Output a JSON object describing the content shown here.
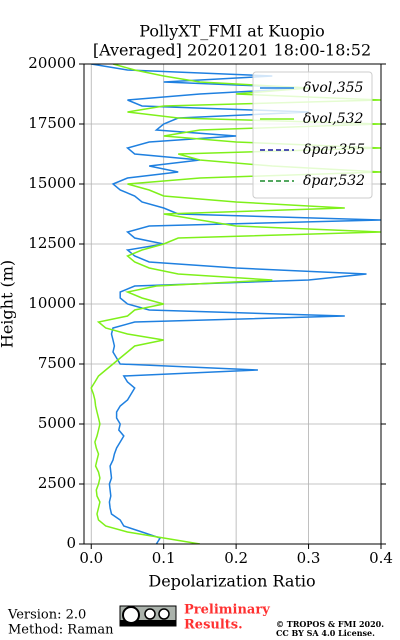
{
  "chart_data": {
    "type": "line",
    "title": "PollyXT_FMI at Kuopio",
    "subtitle": "[Averaged] 20201201 18:00-18:52",
    "xlabel": "Depolarization Ratio",
    "ylabel": "Height (m)",
    "xlim": [
      -0.01,
      0.4
    ],
    "ylim": [
      0,
      20000
    ],
    "xticks": [
      {
        "value": 0,
        "label": "0.0"
      },
      0.1,
      0.2,
      0.3,
      0.4
    ],
    "yticks": [
      0,
      2500,
      5000,
      7500,
      10000,
      12500,
      15000,
      17500,
      20000
    ],
    "grid": true,
    "legend": "upper right",
    "y": [
      0,
      250,
      500,
      750,
      1000,
      1250,
      1500,
      1750,
      2000,
      2250,
      2500,
      2750,
      3000,
      3250,
      3500,
      3750,
      4000,
      4250,
      4500,
      4750,
      5000,
      5250,
      5500,
      5750,
      6000,
      6250,
      6500,
      6750,
      7000,
      7250,
      7500,
      7750,
      8000,
      8250,
      8500,
      8750,
      9000,
      9250,
      9500,
      9750,
      10000,
      10250,
      10500,
      10750,
      11000,
      11250,
      11500,
      11750,
      12000,
      12250,
      12500,
      12750,
      13000,
      13250,
      13500,
      13750,
      14000,
      14250,
      14500,
      14750,
      15000,
      15250,
      15500,
      15750,
      16000,
      16250,
      16500,
      16750,
      17000,
      17250,
      17500,
      17750,
      18000,
      18250,
      18500,
      18750,
      19000,
      19250,
      19500,
      19750,
      20000
    ],
    "series": [
      {
        "name": "δvol,355",
        "color": "#1f80e0",
        "dash": false,
        "values": [
          0.09,
          0.095,
          0.07,
          0.045,
          0.04,
          0.028,
          0.026,
          0.025,
          0.027,
          0.026,
          0.025,
          0.028,
          0.027,
          0.026,
          0.03,
          0.032,
          0.035,
          0.04,
          0.045,
          0.038,
          0.04,
          0.035,
          0.035,
          0.04,
          0.05,
          0.055,
          0.06,
          0.05,
          0.045,
          0.23,
          0.04,
          0.035,
          0.03,
          0.032,
          0.03,
          0.028,
          0.03,
          0.06,
          0.35,
          0.08,
          0.05,
          0.04,
          0.04,
          0.06,
          0.3,
          0.38,
          0.2,
          0.08,
          0.06,
          0.05,
          0.1,
          0.06,
          0.05,
          0.08,
          0.4,
          0.12,
          0.1,
          0.07,
          0.06,
          0.04,
          0.03,
          0.05,
          0.12,
          0.08,
          0.15,
          0.06,
          0.05,
          0.08,
          0.2,
          0.09,
          0.1,
          0.12,
          0.3,
          0.07,
          0.05,
          0.15,
          0.3,
          0.1,
          0.25,
          0.05,
          0.0
        ]
      },
      {
        "name": "δvol,532",
        "color": "#7ff01a",
        "dash": false,
        "values": [
          0.15,
          0.1,
          0.05,
          0.02,
          0.01,
          0.008,
          0.01,
          0.012,
          0.008,
          0.007,
          0.01,
          0.012,
          0.01,
          0.006,
          0.008,
          0.01,
          0.007,
          0.005,
          0.008,
          0.01,
          0.012,
          0.01,
          0.008,
          0.006,
          0.005,
          0.003,
          0.0,
          0.005,
          0.01,
          0.02,
          0.03,
          0.04,
          0.05,
          0.06,
          0.1,
          0.05,
          0.02,
          0.01,
          0.05,
          0.06,
          0.1,
          0.07,
          0.05,
          0.09,
          0.25,
          0.12,
          0.08,
          0.06,
          0.05,
          0.07,
          0.1,
          0.12,
          0.4,
          0.2,
          0.15,
          0.1,
          0.35,
          0.2,
          0.1,
          0.08,
          0.05,
          0.15,
          0.4,
          0.25,
          0.15,
          0.12,
          0.4,
          0.2,
          0.1,
          0.15,
          0.4,
          0.12,
          0.05,
          0.1,
          0.4,
          0.2,
          0.3,
          0.15,
          0.1,
          0.06,
          0.03
        ]
      },
      {
        "name": "δpar,355",
        "color": "#1a1aa0",
        "dash": true,
        "values": [
          null,
          null,
          null,
          null,
          null,
          null,
          null,
          null,
          null,
          null,
          null,
          null,
          null,
          null,
          null,
          null,
          null,
          null,
          null,
          null,
          null,
          null,
          null,
          null,
          null,
          null,
          null,
          null,
          null,
          null,
          null,
          null,
          null,
          null,
          null,
          null,
          null,
          null,
          null,
          null,
          null,
          null,
          null,
          null,
          null,
          null,
          null,
          null,
          null,
          null,
          null,
          null,
          null,
          null,
          null,
          null,
          null,
          null,
          null,
          null,
          null,
          null,
          null,
          null,
          null,
          null,
          null,
          null,
          null,
          null,
          null,
          null,
          null,
          null,
          null,
          null,
          null,
          null,
          null,
          null,
          null
        ]
      },
      {
        "name": "δpar,532",
        "color": "#1a8a2a",
        "dash": true,
        "values": [
          null,
          null,
          null,
          null,
          null,
          null,
          null,
          null,
          null,
          null,
          null,
          null,
          null,
          null,
          null,
          null,
          null,
          null,
          null,
          null,
          null,
          null,
          null,
          null,
          null,
          null,
          null,
          null,
          null,
          null,
          null,
          null,
          null,
          null,
          null,
          null,
          null,
          null,
          null,
          null,
          null,
          null,
          null,
          null,
          null,
          null,
          null,
          null,
          null,
          null,
          null,
          null,
          null,
          null,
          null,
          null,
          null,
          null,
          null,
          null,
          null,
          null,
          null,
          null,
          null,
          null,
          null,
          null,
          null,
          null,
          null,
          null,
          null,
          null,
          null,
          null,
          null,
          null,
          null,
          null,
          null
        ]
      }
    ]
  },
  "footer": {
    "version": "Version: 2.0",
    "method": "Method: Raman",
    "preliminary": "Preliminary",
    "results": "Results.",
    "copyright": "© TROPOS & FMI 2020.",
    "license": "CC BY SA 4.0 License."
  }
}
